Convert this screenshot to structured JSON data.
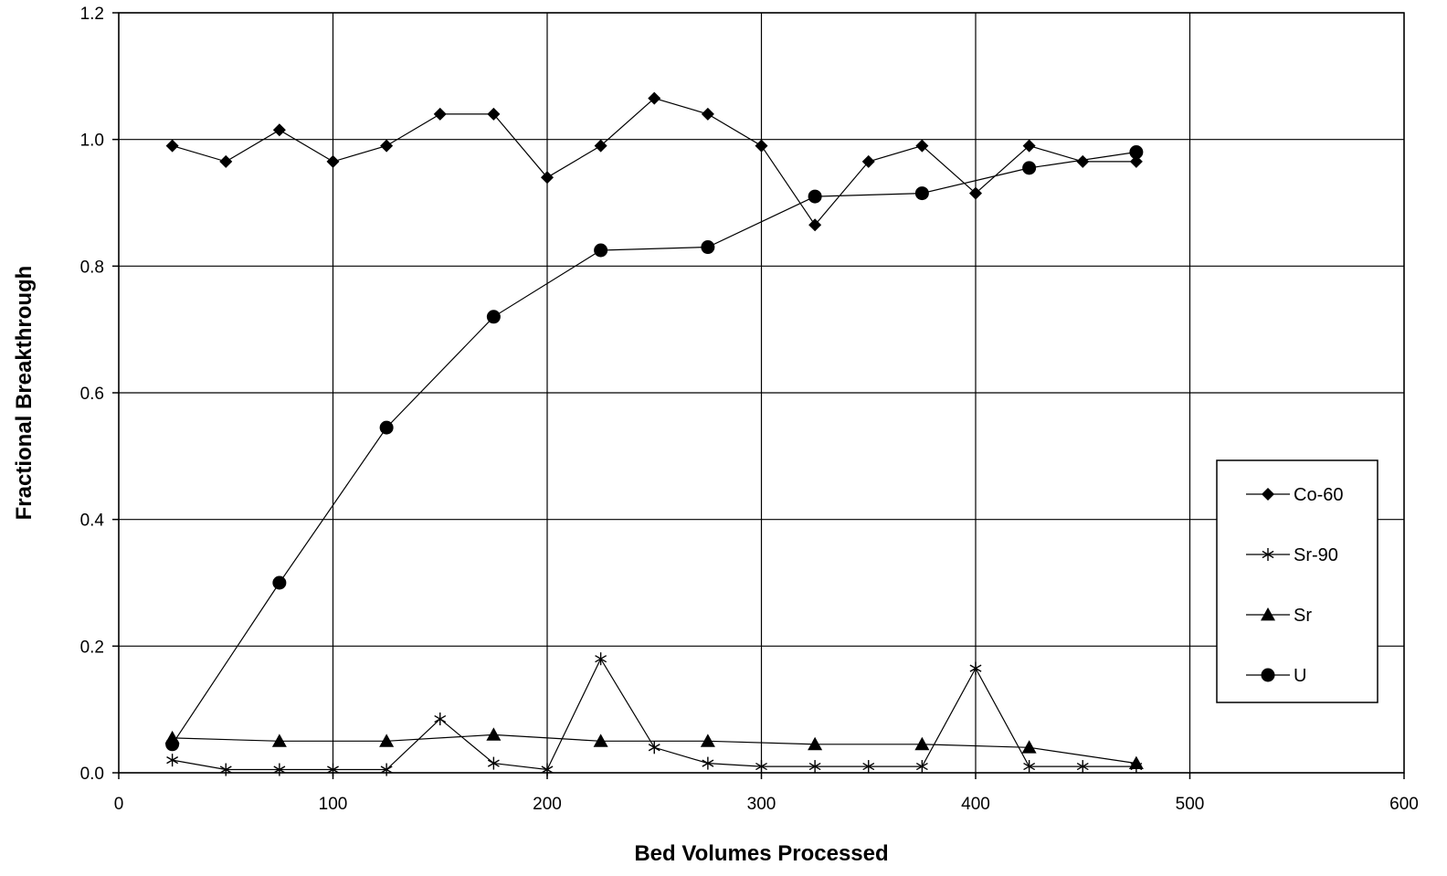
{
  "chart_data": {
    "type": "line",
    "title": "",
    "xlabel": "Bed Volumes Processed",
    "ylabel": "Fractional Breakthrough",
    "xlim": [
      0,
      600
    ],
    "ylim": [
      0,
      1.2
    ],
    "xticks": [
      0,
      100,
      200,
      300,
      400,
      500,
      600
    ],
    "yticks": [
      0.0,
      0.2,
      0.4,
      0.6,
      0.8,
      1.0,
      1.2
    ],
    "xtick_labels": [
      "0",
      "100",
      "200",
      "300",
      "400",
      "500",
      "600"
    ],
    "ytick_labels": [
      "0.0",
      "0.2",
      "0.4",
      "0.6",
      "0.8",
      "1.0",
      "1.2"
    ],
    "grid": true,
    "legend_position": "right",
    "series": [
      {
        "name": "Co-60",
        "marker": "diamond",
        "x": [
          25,
          50,
          75,
          100,
          125,
          150,
          175,
          200,
          225,
          250,
          275,
          300,
          325,
          350,
          375,
          400,
          425,
          450,
          475
        ],
        "y": [
          0.99,
          0.965,
          1.015,
          0.965,
          0.99,
          1.04,
          1.04,
          0.94,
          0.99,
          1.065,
          1.04,
          0.99,
          0.865,
          0.965,
          0.99,
          0.915,
          0.99,
          0.965,
          0.965
        ]
      },
      {
        "name": "Sr-90",
        "marker": "asterisk",
        "x": [
          25,
          50,
          75,
          100,
          125,
          150,
          175,
          200,
          225,
          250,
          275,
          300,
          325,
          350,
          375,
          400,
          425,
          450,
          475
        ],
        "y": [
          0.02,
          0.005,
          0.005,
          0.005,
          0.005,
          0.085,
          0.015,
          0.005,
          0.18,
          0.04,
          0.015,
          0.01,
          0.01,
          0.01,
          0.01,
          0.165,
          0.01,
          0.01,
          0.01
        ]
      },
      {
        "name": "Sr",
        "marker": "triangle",
        "x": [
          25,
          75,
          125,
          175,
          225,
          275,
          325,
          375,
          425,
          475
        ],
        "y": [
          0.055,
          0.05,
          0.05,
          0.06,
          0.05,
          0.05,
          0.045,
          0.045,
          0.04,
          0.015
        ]
      },
      {
        "name": "U",
        "marker": "circle",
        "x": [
          25,
          75,
          125,
          175,
          225,
          275,
          325,
          375,
          425,
          475
        ],
        "y": [
          0.045,
          0.3,
          0.545,
          0.72,
          0.825,
          0.83,
          0.91,
          0.915,
          0.955,
          0.98
        ]
      }
    ]
  }
}
